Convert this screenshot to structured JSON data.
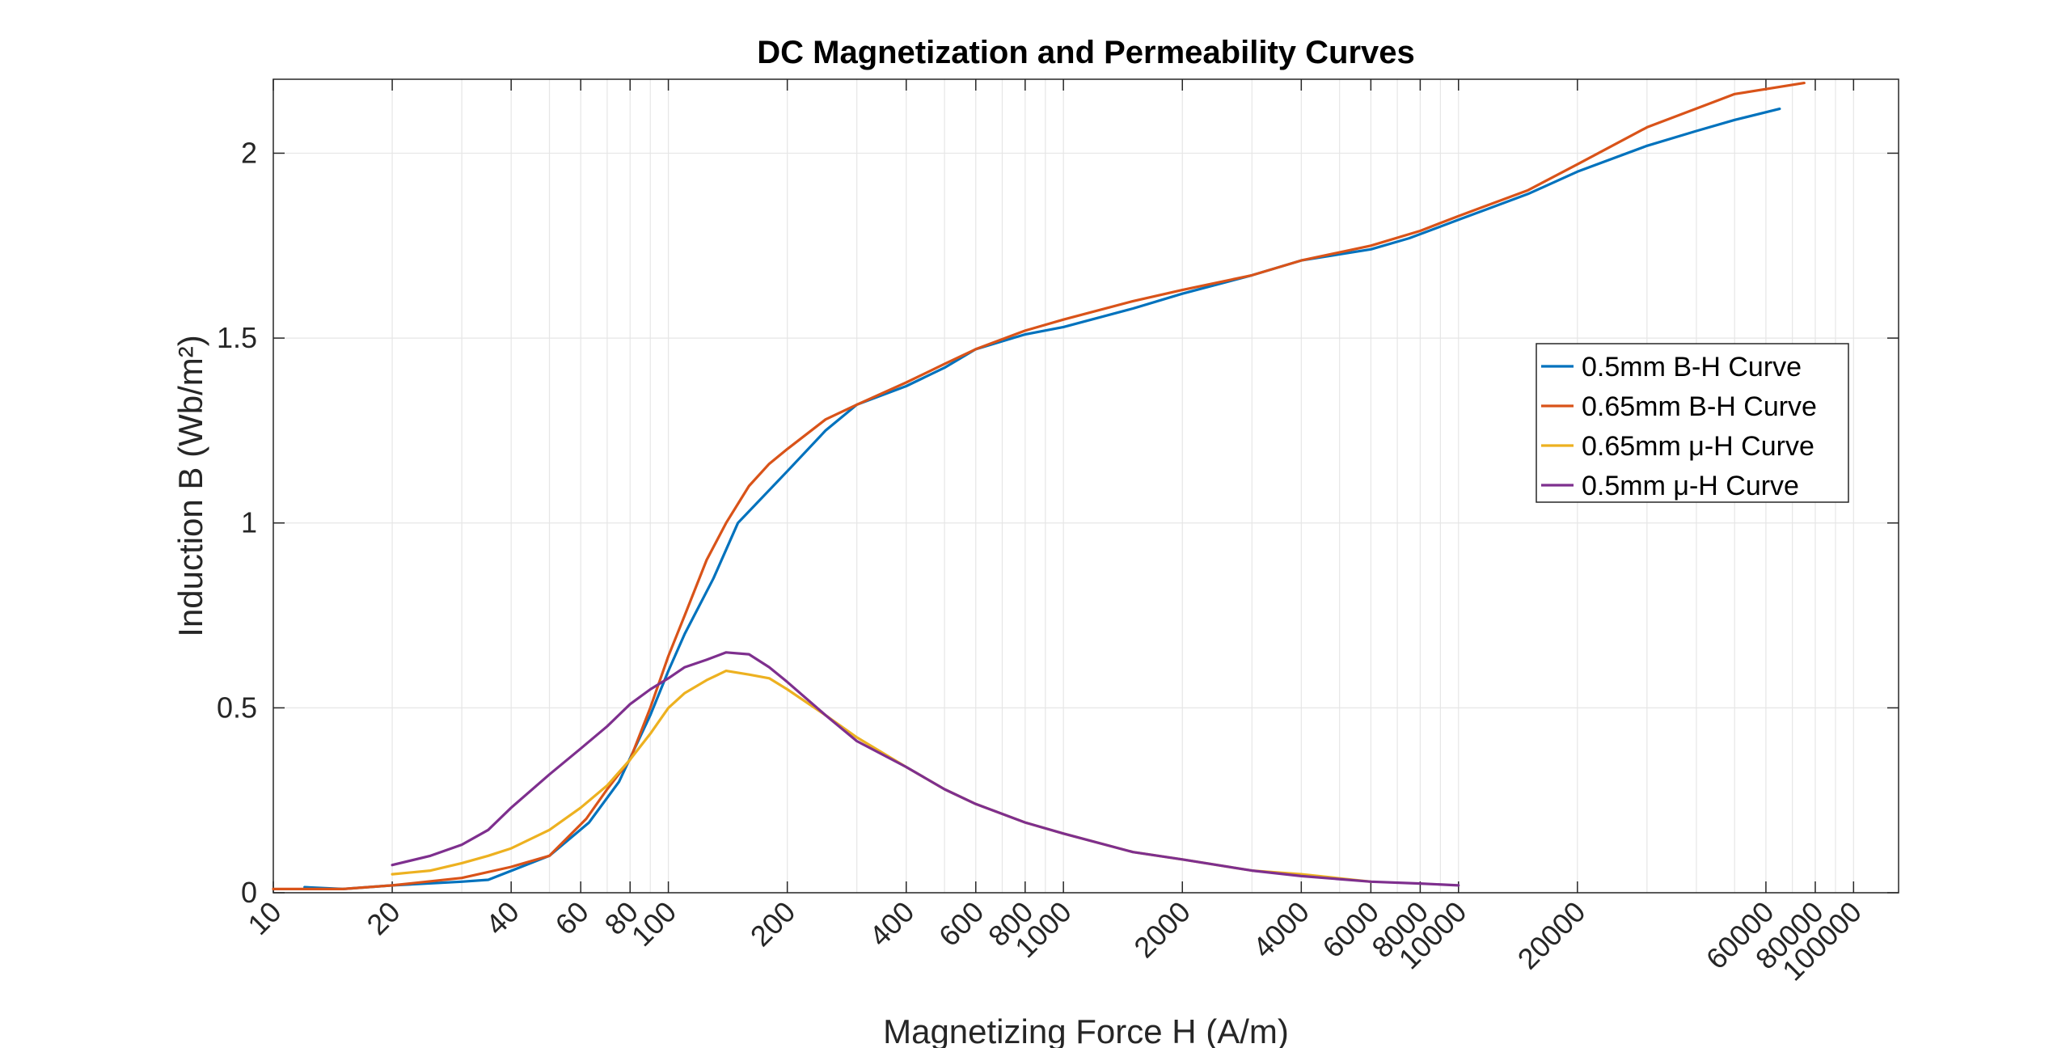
{
  "chart_data": {
    "type": "line",
    "title": "DC Magnetization and Permeability Curves",
    "xlabel": "Magnetizing Force H (A/m)",
    "ylabel": "Induction B (Wb/m²)",
    "xscale": "log",
    "xlim": [
      10,
      130000
    ],
    "ylim": [
      0,
      2.2
    ],
    "grid": true,
    "legend_position": "right",
    "x_ticks": [
      10,
      20,
      40,
      60,
      80,
      100,
      200,
      400,
      600,
      800,
      1000,
      2000,
      4000,
      6000,
      8000,
      10000,
      20000,
      60000,
      80000,
      100000
    ],
    "y_ticks": [
      0,
      0.5,
      1,
      1.5,
      2
    ],
    "series": [
      {
        "name": "0.5mm B-H Curve",
        "color": "#0072BD",
        "x": [
          12,
          15,
          20,
          30,
          35,
          50,
          63,
          75,
          90,
          100,
          110,
          130,
          150,
          200,
          250,
          300,
          400,
          500,
          600,
          800,
          1000,
          1500,
          2000,
          3000,
          4000,
          6000,
          7500,
          10000,
          15000,
          20000,
          30000,
          40000,
          50000,
          65000
        ],
        "y": [
          0.015,
          0.01,
          0.02,
          0.03,
          0.035,
          0.1,
          0.19,
          0.3,
          0.48,
          0.6,
          0.7,
          0.85,
          1.0,
          1.14,
          1.25,
          1.32,
          1.37,
          1.42,
          1.47,
          1.51,
          1.53,
          1.58,
          1.62,
          1.67,
          1.71,
          1.74,
          1.77,
          1.82,
          1.89,
          1.95,
          2.02,
          2.06,
          2.09,
          2.12
        ]
      },
      {
        "name": "0.65mm B-H Curve",
        "color": "#D95319",
        "x": [
          10,
          15,
          20,
          30,
          40,
          50,
          62,
          70,
          80,
          90,
          100,
          110,
          125,
          140,
          160,
          180,
          200,
          250,
          300,
          400,
          500,
          600,
          800,
          1000,
          1500,
          2000,
          3000,
          4000,
          6000,
          8000,
          10000,
          15000,
          20000,
          30000,
          50000,
          75000
        ],
        "y": [
          0.01,
          0.01,
          0.02,
          0.04,
          0.07,
          0.1,
          0.2,
          0.28,
          0.36,
          0.5,
          0.64,
          0.75,
          0.9,
          1.0,
          1.1,
          1.16,
          1.2,
          1.28,
          1.32,
          1.38,
          1.43,
          1.47,
          1.52,
          1.55,
          1.6,
          1.63,
          1.67,
          1.71,
          1.75,
          1.79,
          1.83,
          1.9,
          1.97,
          2.07,
          2.16,
          2.19
        ]
      },
      {
        "name": "0.65mm μ-H Curve",
        "color": "#EDB120",
        "x": [
          20,
          25,
          30,
          35,
          40,
          50,
          60,
          70,
          80,
          90,
          100,
          110,
          125,
          140,
          160,
          180,
          200,
          250,
          300,
          400,
          500,
          600,
          800,
          1000,
          1500,
          2000,
          3000,
          4000,
          6000
        ],
        "y": [
          0.05,
          0.06,
          0.08,
          0.1,
          0.12,
          0.17,
          0.23,
          0.29,
          0.36,
          0.43,
          0.5,
          0.54,
          0.575,
          0.6,
          0.59,
          0.58,
          0.55,
          0.48,
          0.42,
          0.34,
          0.28,
          0.24,
          0.19,
          0.16,
          0.11,
          0.09,
          0.06,
          0.05,
          0.03
        ]
      },
      {
        "name": "0.5mm μ-H Curve",
        "color": "#7E2F8E",
        "x": [
          20,
          25,
          30,
          35,
          40,
          50,
          60,
          70,
          80,
          90,
          100,
          110,
          125,
          140,
          160,
          180,
          200,
          250,
          300,
          400,
          500,
          600,
          800,
          1000,
          1500,
          2000,
          3000,
          4000,
          6000,
          8000,
          10000
        ],
        "y": [
          0.075,
          0.1,
          0.13,
          0.17,
          0.23,
          0.32,
          0.39,
          0.45,
          0.51,
          0.55,
          0.58,
          0.61,
          0.63,
          0.65,
          0.645,
          0.61,
          0.57,
          0.48,
          0.41,
          0.34,
          0.28,
          0.24,
          0.19,
          0.16,
          0.11,
          0.09,
          0.06,
          0.045,
          0.03,
          0.025,
          0.02
        ]
      }
    ]
  }
}
